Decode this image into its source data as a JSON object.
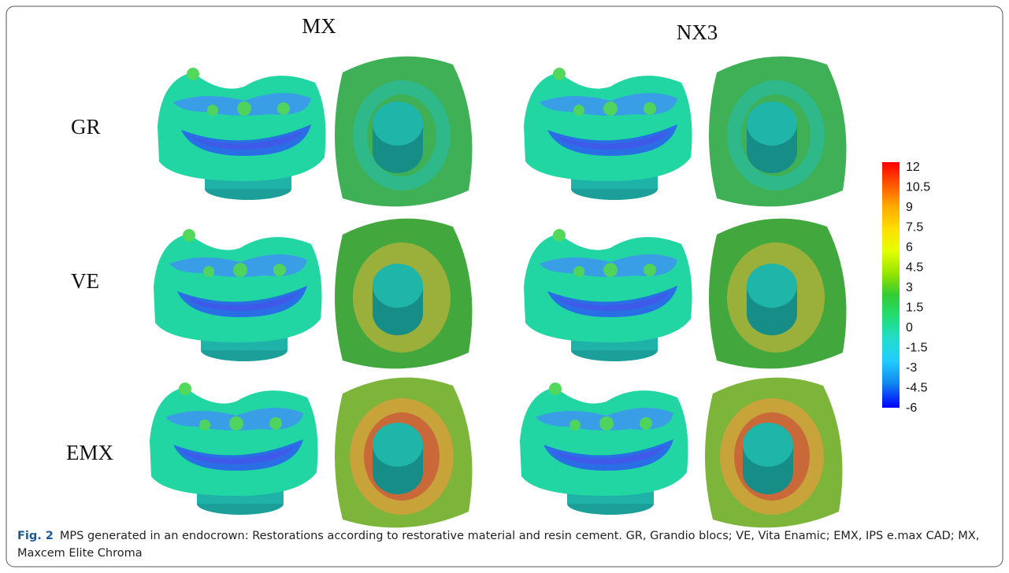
{
  "figure": {
    "column_headers": [
      "MX",
      "NX3"
    ],
    "row_labels": [
      "GR",
      "VE",
      "EMX"
    ],
    "colorbar_labels": [
      12,
      10.5,
      9,
      7.5,
      6,
      4.5,
      3,
      1.5,
      0,
      -1.5,
      -3,
      -4.5,
      -6
    ]
  },
  "caption": {
    "label": "Fig. 2",
    "text": "MPS generated in an endocrown: Restorations according to restorative material and resin cement. GR, Grandio blocs; VE, Vita Enamic; EMX, IPS e.max CAD; MX, Maxcem Elite Chroma"
  }
}
